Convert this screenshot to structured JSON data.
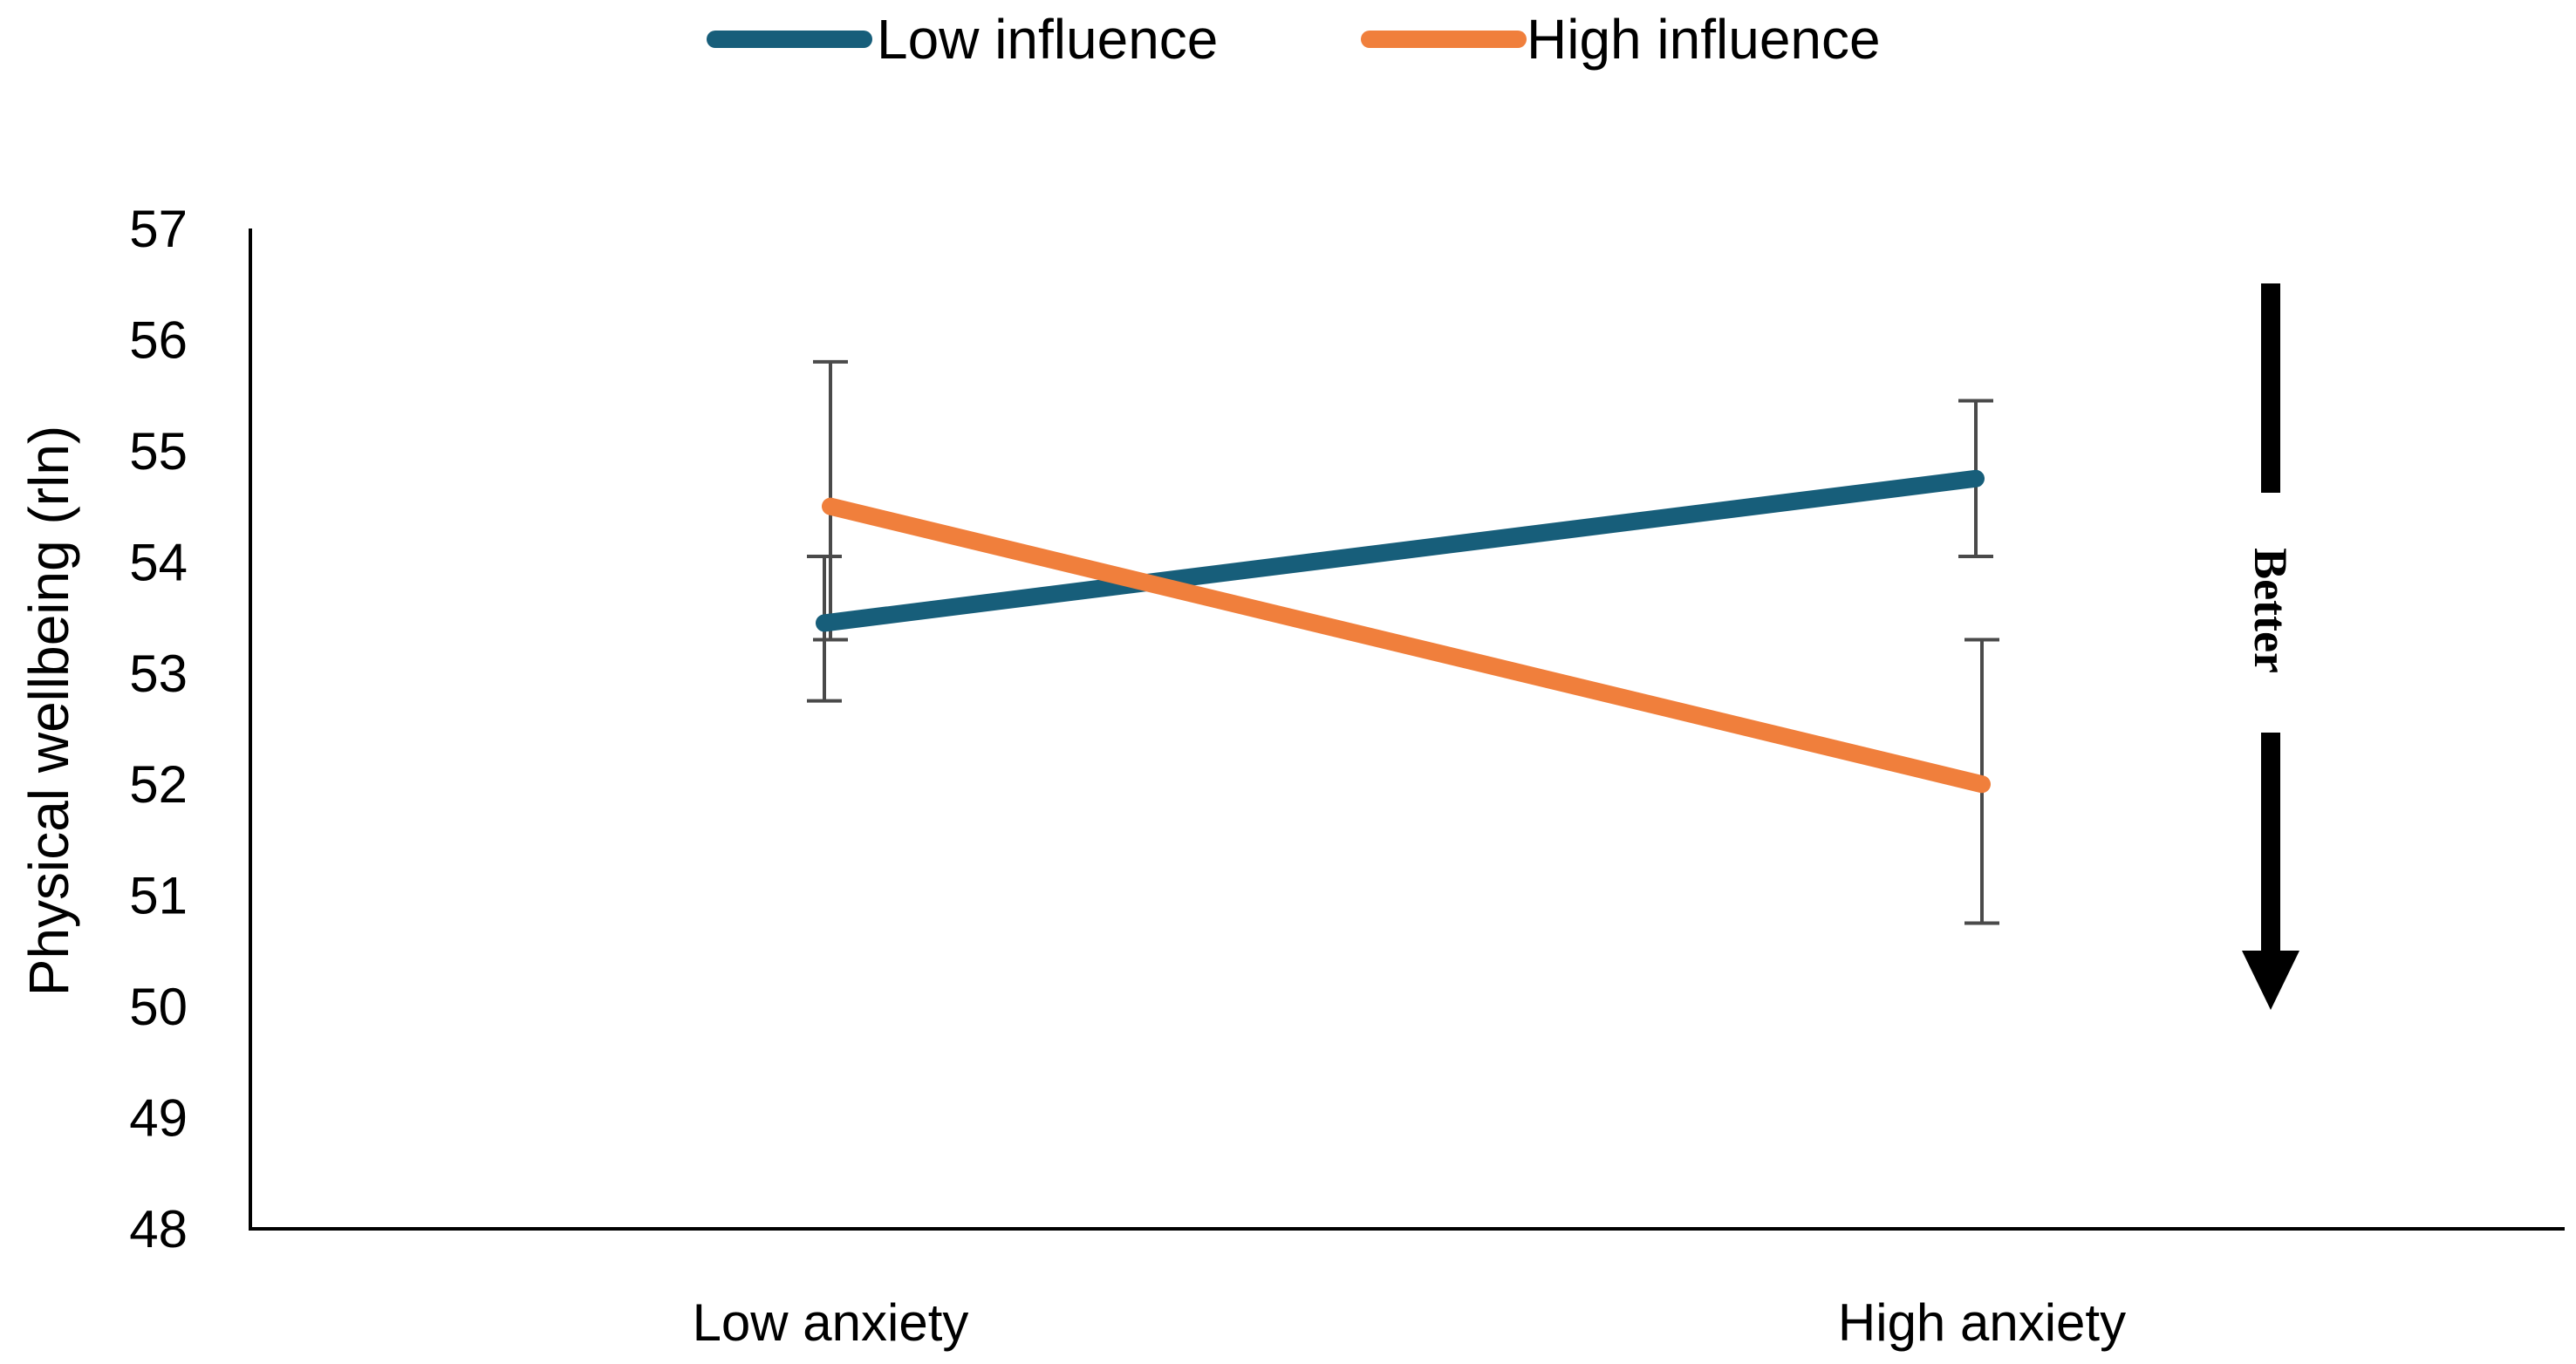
{
  "chart_data": {
    "type": "line",
    "title": "",
    "xlabel": "",
    "ylabel": "Physical wellbeing (rln)",
    "categories": [
      "Low anxiety",
      "High anxiety"
    ],
    "ylim": [
      48,
      57
    ],
    "yticks": [
      48,
      49,
      50,
      51,
      52,
      53,
      54,
      55,
      56,
      57
    ],
    "grid": false,
    "legend": "top-center",
    "series": [
      {
        "name": "Low influence",
        "color": "#175E7A",
        "values": [
          53.45,
          54.75
        ],
        "error_low": [
          52.75,
          54.05
        ],
        "error_high": [
          54.05,
          55.45
        ]
      },
      {
        "name": "High influence",
        "color": "#F07F3C",
        "values": [
          54.5,
          52.0
        ],
        "error_low": [
          53.3,
          50.75
        ],
        "error_high": [
          55.8,
          53.3
        ]
      }
    ],
    "annotation": {
      "text": "Better",
      "direction": "down",
      "color": "#000000"
    }
  }
}
